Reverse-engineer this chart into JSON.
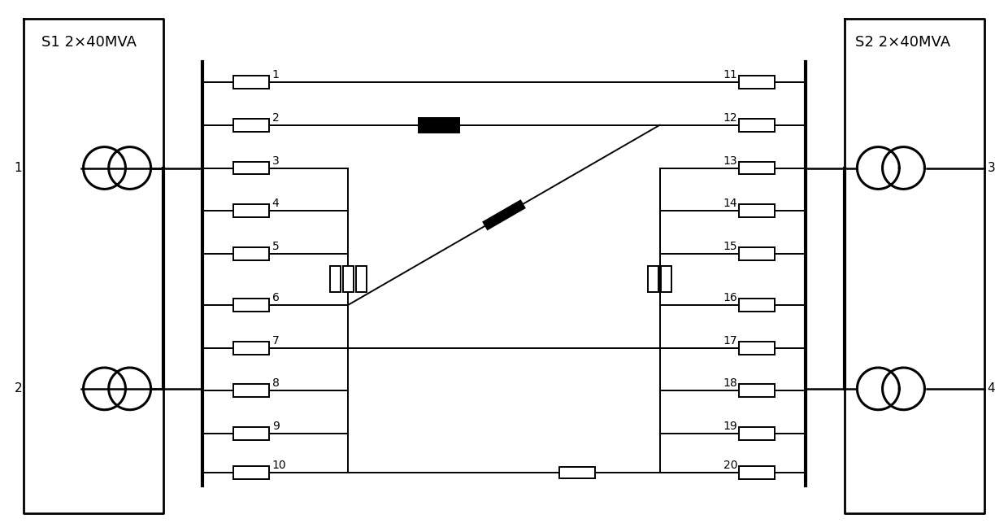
{
  "background_color": "#ffffff",
  "fig_width": 12.4,
  "fig_height": 6.54,
  "s1_label": "S1 2×40MVA",
  "s2_label": "S2 2×40MVA",
  "feeder_labels_left": [
    "1",
    "2",
    "3",
    "4",
    "5",
    "6",
    "7",
    "8",
    "9",
    "10"
  ],
  "feeder_labels_right": [
    "11",
    "12",
    "13",
    "14",
    "15",
    "16",
    "17",
    "18",
    "19",
    "20"
  ],
  "transformer_labels_left": [
    "1",
    "2"
  ],
  "transformer_labels_right": [
    "3",
    "4"
  ]
}
